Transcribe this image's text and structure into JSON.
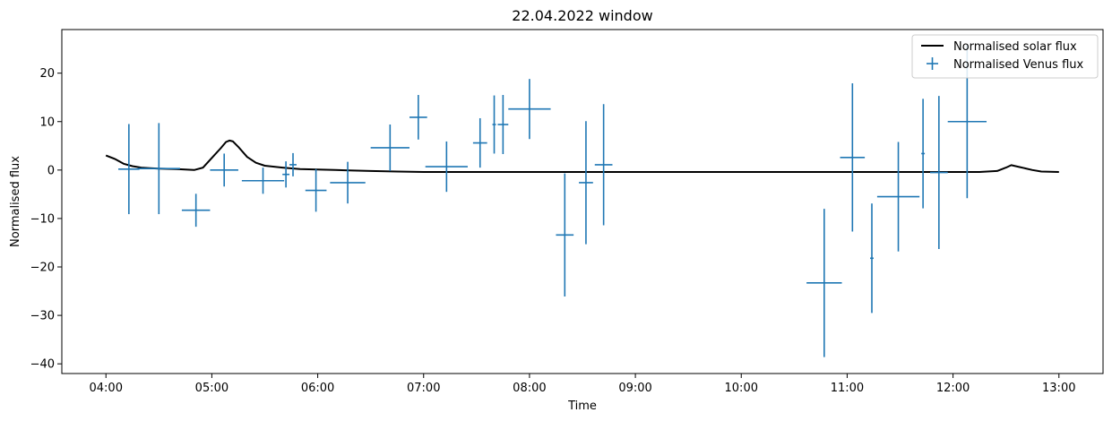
{
  "chart_data": {
    "type": "line",
    "title": "22.04.2022 window",
    "xlabel": "Time",
    "ylabel": "Normalised flux",
    "xlim": [
      "03:35",
      "13:25"
    ],
    "ylim": [
      -42,
      29
    ],
    "x_ticks": [
      "04:00",
      "05:00",
      "06:00",
      "07:00",
      "08:00",
      "09:00",
      "10:00",
      "11:00",
      "12:00",
      "13:00"
    ],
    "y_ticks": [
      -40,
      -30,
      -20,
      -10,
      0,
      10,
      20
    ],
    "grid": false,
    "legend_position": "top-right",
    "colors": {
      "solar": "#000000",
      "venus": "#1f77b4"
    },
    "series": [
      {
        "name": "Normalised solar flux",
        "kind": "line",
        "x": [
          "04:00",
          "04:05",
          "04:10",
          "04:15",
          "04:20",
          "04:25",
          "04:30",
          "04:40",
          "04:50",
          "04:55",
          "05:00",
          "05:05",
          "05:08",
          "05:10",
          "05:12",
          "05:15",
          "05:20",
          "05:25",
          "05:30",
          "05:40",
          "05:50",
          "06:00",
          "06:10",
          "06:20",
          "06:30",
          "06:45",
          "07:00",
          "07:30",
          "08:00",
          "08:30",
          "09:00",
          "09:30",
          "10:00",
          "10:30",
          "11:00",
          "11:30",
          "12:00",
          "12:15",
          "12:25",
          "12:30",
          "12:33",
          "12:38",
          "12:45",
          "12:50",
          "13:00"
        ],
        "y": [
          3.0,
          2.3,
          1.3,
          0.8,
          0.5,
          0.4,
          0.3,
          0.2,
          0.0,
          0.5,
          2.5,
          4.5,
          5.8,
          6.1,
          5.9,
          4.8,
          2.7,
          1.5,
          0.9,
          0.5,
          0.2,
          0.1,
          0.0,
          -0.1,
          -0.2,
          -0.3,
          -0.4,
          -0.4,
          -0.4,
          -0.4,
          -0.4,
          -0.4,
          -0.4,
          -0.4,
          -0.4,
          -0.4,
          -0.4,
          -0.4,
          -0.2,
          0.5,
          1.0,
          0.6,
          0.0,
          -0.3,
          -0.4
        ]
      },
      {
        "name": "Normalised Venus flux",
        "kind": "errorbar",
        "points": [
          {
            "x": "04:13",
            "y": 0.2,
            "xerr": 6,
            "yerr": 9.3
          },
          {
            "x": "04:30",
            "y": 0.3,
            "xerr": 12,
            "yerr": 9.4
          },
          {
            "x": "04:51",
            "y": -8.3,
            "xerr": 8,
            "yerr": 3.4
          },
          {
            "x": "05:07",
            "y": 0.0,
            "xerr": 8,
            "yerr": 3.4
          },
          {
            "x": "05:29",
            "y": -2.2,
            "xerr": 12,
            "yerr": 2.7
          },
          {
            "x": "05:42",
            "y": -0.9,
            "xerr": 2,
            "yerr": 2.7
          },
          {
            "x": "05:46",
            "y": 1.1,
            "xerr": 2,
            "yerr": 2.4
          },
          {
            "x": "05:59",
            "y": -4.2,
            "xerr": 6,
            "yerr": 4.4
          },
          {
            "x": "06:17",
            "y": -2.6,
            "xerr": 10,
            "yerr": 4.3
          },
          {
            "x": "06:41",
            "y": 4.6,
            "xerr": 11,
            "yerr": 4.8
          },
          {
            "x": "06:57",
            "y": 10.9,
            "xerr": 5,
            "yerr": 4.6
          },
          {
            "x": "07:13",
            "y": 0.7,
            "xerr": 12,
            "yerr": 5.2
          },
          {
            "x": "07:32",
            "y": 5.6,
            "xerr": 4,
            "yerr": 5.1
          },
          {
            "x": "07:40",
            "y": 9.4,
            "xerr": 1,
            "yerr": 6.0
          },
          {
            "x": "07:45",
            "y": 9.4,
            "xerr": 3,
            "yerr": 6.1
          },
          {
            "x": "08:00",
            "y": 12.6,
            "xerr": 12,
            "yerr": 6.2
          },
          {
            "x": "08:20",
            "y": -13.4,
            "xerr": 5,
            "yerr": 12.7
          },
          {
            "x": "08:32",
            "y": -2.6,
            "xerr": 4,
            "yerr": 12.7
          },
          {
            "x": "08:42",
            "y": 1.1,
            "xerr": 5,
            "yerr": 12.5
          },
          {
            "x": "10:47",
            "y": -23.3,
            "xerr": 10,
            "yerr": 15.3
          },
          {
            "x": "11:03",
            "y": 2.6,
            "xerr": 7,
            "yerr": 15.3
          },
          {
            "x": "11:14",
            "y": -18.2,
            "xerr": 1,
            "yerr": 11.3
          },
          {
            "x": "11:29",
            "y": -5.5,
            "xerr": 12,
            "yerr": 11.3
          },
          {
            "x": "11:43",
            "y": 3.4,
            "xerr": 1,
            "yerr": 11.3
          },
          {
            "x": "11:52",
            "y": -0.5,
            "xerr": 5,
            "yerr": 15.8
          },
          {
            "x": "12:08",
            "y": 10.0,
            "xerr": 11,
            "yerr": 15.8
          }
        ]
      }
    ]
  }
}
